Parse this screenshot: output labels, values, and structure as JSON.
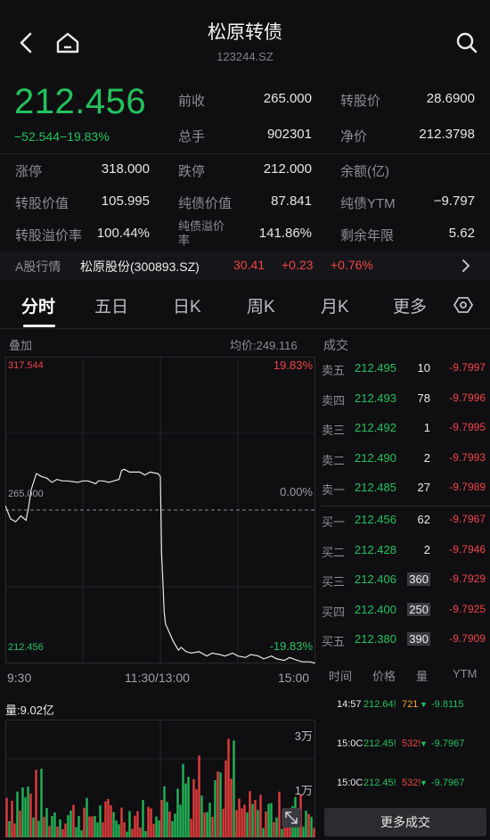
{
  "header": {
    "title": "松原转债",
    "code": "123244.SZ",
    "back_icon": "back-arrow-icon",
    "home_icon": "home-icon",
    "search_icon": "search-icon"
  },
  "quote": {
    "price": "212.456",
    "change": "−52.544",
    "change_pct": "−19.83%",
    "fields": [
      {
        "label": "前收",
        "value": "265.000"
      },
      {
        "label": "转股价",
        "value": "28.6900"
      },
      {
        "label": "总手",
        "value": "902301"
      },
      {
        "label": "净价",
        "value": "212.3798"
      }
    ]
  },
  "stats": [
    {
      "label": "涨停",
      "value": "318.000",
      "color": "#f04444"
    },
    {
      "label": "跌停",
      "value": "212.000",
      "color": "#23c25c"
    },
    {
      "label": "余额(亿)",
      "value": ""
    },
    {
      "label": "转股价值",
      "value": "105.995"
    },
    {
      "label": "纯债价值",
      "value": "87.841"
    },
    {
      "label": "纯债YTM",
      "value": "−9.797"
    },
    {
      "label": "转股溢价率",
      "value": "100.44%"
    },
    {
      "label": "纯债溢价率",
      "value": "141.86%"
    },
    {
      "label": "剩余年限",
      "value": "5.62"
    }
  ],
  "stock": {
    "label": "A股行情",
    "name": "松原股份(300893.SZ)",
    "price": "30.41",
    "change": "+0.23",
    "change_pct": "+0.76%"
  },
  "tabs": [
    "分时",
    "五日",
    "日K",
    "周K",
    "月K",
    "更多"
  ],
  "chart_header": {
    "overlay": "叠加",
    "avg": "均价:249.116",
    "trades_title": "成交"
  },
  "chart_data": [
    {
      "type": "line",
      "title": "",
      "x_start": "9:30",
      "x_mid": "11:30/13:00",
      "x_end": "15:00",
      "y_top_label": "317.544",
      "y_mid_label": "265.000",
      "y_bot_label": "212.456",
      "pct_top": "19.83%",
      "pct_mid": "0.00%",
      "pct_bot": "-19.83%",
      "ylim": [
        212.456,
        317.544
      ],
      "prev_close": 265.0,
      "x": [
        0,
        4,
        8,
        12,
        16,
        18,
        20,
        24,
        28,
        32,
        36,
        40,
        44,
        48,
        56,
        60,
        64,
        70,
        72,
        76,
        80,
        84,
        88,
        90,
        92,
        96,
        100,
        104,
        108,
        112,
        118,
        120,
        121,
        122,
        123,
        124,
        126,
        128,
        130,
        132,
        134,
        136,
        140,
        144,
        150,
        156,
        160,
        166,
        170,
        176,
        180,
        186,
        190,
        196,
        200,
        206,
        210,
        216,
        220,
        226,
        230,
        236,
        240
      ],
      "y": [
        266.5,
        262.0,
        261.0,
        263.0,
        261.5,
        266.0,
        272.0,
        277.5,
        276.5,
        276.0,
        274.5,
        275.5,
        275.0,
        275.0,
        274.5,
        275.0,
        275.0,
        274.0,
        275.0,
        275.0,
        274.5,
        275.0,
        275.5,
        278.5,
        279.0,
        278.0,
        278.0,
        278.0,
        277.0,
        278.0,
        277.5,
        276.5,
        250.0,
        240.0,
        230.0,
        226.0,
        224.0,
        222.0,
        220.0,
        218.5,
        217.0,
        218.0,
        216.5,
        216.0,
        216.5,
        215.0,
        216.0,
        215.5,
        215.0,
        216.0,
        215.0,
        214.5,
        215.5,
        215.0,
        214.0,
        215.0,
        214.0,
        213.5,
        214.5,
        213.5,
        213.0,
        213.0,
        212.5
      ]
    },
    {
      "type": "bar",
      "title": "量:9.02亿",
      "y_label_top": "3万",
      "y_label_mid": "1万",
      "ylim": [
        0,
        36000
      ]
    }
  ],
  "orderbook": {
    "asks": [
      {
        "label": "卖五",
        "price": "212.495",
        "vol": "10",
        "ytm": "-9.7997"
      },
      {
        "label": "卖四",
        "price": "212.493",
        "vol": "78",
        "ytm": "-9.7996"
      },
      {
        "label": "卖三",
        "price": "212.492",
        "vol": "1",
        "ytm": "-9.7995"
      },
      {
        "label": "卖二",
        "price": "212.490",
        "vol": "2",
        "ytm": "-9.7993"
      },
      {
        "label": "卖一",
        "price": "212.485",
        "vol": "27",
        "ytm": "-9.7989"
      }
    ],
    "bids": [
      {
        "label": "买一",
        "price": "212.456",
        "vol": "62",
        "ytm": "-9.7967"
      },
      {
        "label": "买二",
        "price": "212.428",
        "vol": "2",
        "ytm": "-9.7946"
      },
      {
        "label": "买三",
        "price": "212.406",
        "vol": "360",
        "ytm": "-9.7929"
      },
      {
        "label": "买四",
        "price": "212.400",
        "vol": "250",
        "ytm": "-9.7925"
      },
      {
        "label": "买五",
        "price": "212.380",
        "vol": "390",
        "ytm": "-9.7909"
      }
    ]
  },
  "trades": {
    "headers": [
      "时间",
      "价格",
      "量",
      "YTM"
    ],
    "rows": [
      {
        "time": "14:57",
        "price": "212.64!",
        "vol": "721",
        "ytm": "-9.8115",
        "dir": "down",
        "vol_color": "#f5a623"
      },
      {
        "time": "15:0C",
        "price": "212.45!",
        "vol": "532!",
        "ytm": "-9.7967",
        "dir": "down",
        "vol_color": "#f04444"
      },
      {
        "time": "15:0C",
        "price": "212.45!",
        "vol": "532!",
        "ytm": "-9.7967",
        "dir": "down",
        "vol_color": "#f04444"
      }
    ],
    "more_label": "更多成交"
  },
  "settings_icon": "hexagon-settings-icon",
  "chevron_icon": "chevron-right-icon",
  "expand_icon": "expand-icon"
}
